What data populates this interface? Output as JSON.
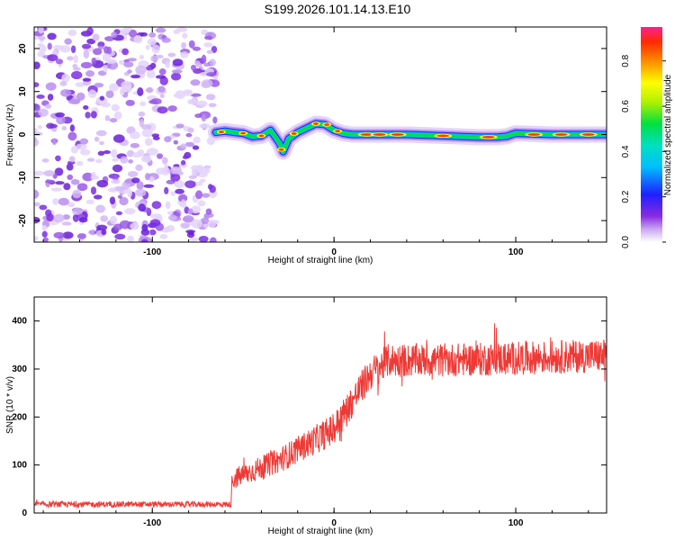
{
  "title": "S199.2026.101.14.13.E10",
  "chart_data": [
    {
      "type": "heatmap",
      "xlabel": "Height of straight line (km)",
      "ylabel": "Frequency (Hz)",
      "xlim": [
        -165,
        150
      ],
      "ylim": [
        -25,
        25
      ],
      "xticks": [
        -100,
        0,
        100
      ],
      "yticks": [
        -20,
        -10,
        0,
        10,
        20
      ],
      "noise_region_x": [
        -165,
        -65
      ],
      "ridge": {
        "x": [
          -65,
          -60,
          -55,
          -50,
          -45,
          -40,
          -35,
          -30,
          -28,
          -25,
          -20,
          -15,
          -10,
          -5,
          0,
          5,
          10,
          20,
          40,
          60,
          80,
          90,
          95,
          100,
          120,
          150
        ],
        "freq": [
          0.5,
          0.8,
          0.5,
          0.3,
          -0.5,
          -0.3,
          1.0,
          -2.0,
          -4.0,
          -1.0,
          0.5,
          1.5,
          2.5,
          2.3,
          1.0,
          0.3,
          0.0,
          0.0,
          0.0,
          -0.3,
          -0.6,
          -0.6,
          -0.4,
          0.3,
          0.0,
          0.0
        ]
      },
      "colorbar": {
        "label": "Normalized spectral amplitude",
        "range": [
          0.0,
          0.95
        ],
        "ticks": [
          "0.0",
          "0.2",
          "0.4",
          "0.6",
          "0.8"
        ],
        "tick_values": [
          0.0,
          0.2,
          0.4,
          0.6,
          0.8
        ]
      }
    },
    {
      "type": "line",
      "xlabel": "Height of straight line (km)",
      "ylabel": "SNR (10 * v/v)",
      "xlim": [
        -165,
        150
      ],
      "ylim": [
        0,
        450
      ],
      "xticks": [
        -100,
        0,
        100
      ],
      "yticks": [
        0,
        100,
        200,
        300,
        400
      ],
      "color": "#ee3a36",
      "trend": {
        "x": [
          -165,
          -57,
          -56,
          -30,
          0,
          20,
          30,
          50,
          80,
          150
        ],
        "y": [
          18,
          18,
          70,
          110,
          175,
          290,
          318,
          318,
          320,
          328
        ]
      },
      "noise_amplitude_before_onset": 6,
      "noise_amplitude_after_onset": 35
    }
  ]
}
